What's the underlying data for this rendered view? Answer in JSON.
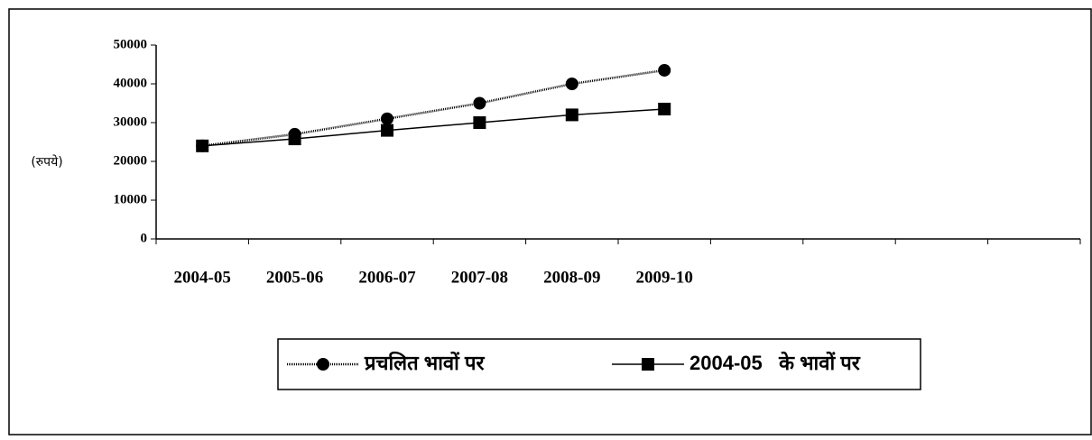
{
  "chart_data": {
    "type": "line",
    "ylabel": "(रुपये)",
    "categories": [
      "2004-05",
      "2005-06",
      "2006-07",
      "2007-08",
      "2008-09",
      "2009-10",
      null,
      null,
      null,
      null
    ],
    "series": [
      {
        "name": "प्रचलित भावों पर",
        "color": "#000000",
        "marker": "circle",
        "values": [
          24000,
          27000,
          31000,
          35000,
          40000,
          43500,
          null,
          null,
          null,
          null
        ]
      },
      {
        "name": "2004-05   के भावों पर",
        "color": "#000000",
        "marker": "square",
        "values": [
          24000,
          25800,
          28000,
          30000,
          32000,
          33500,
          null,
          null,
          null,
          null
        ]
      }
    ],
    "ylim": [
      0,
      50000
    ],
    "yticks": [
      0,
      10000,
      20000,
      30000,
      40000,
      50000
    ],
    "grid": false,
    "legend": "bottom"
  }
}
